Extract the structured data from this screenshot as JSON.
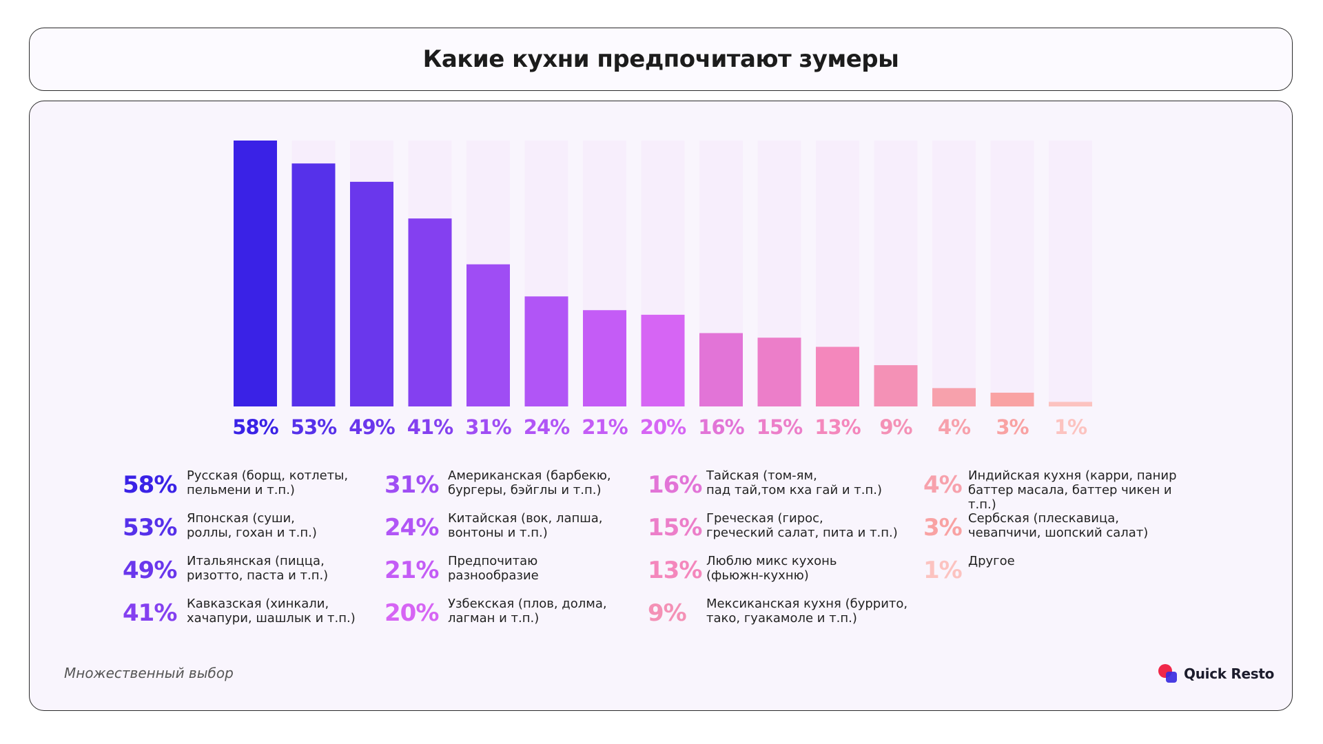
{
  "title": "Какие кухни предпочитают зумеры",
  "footnote": "Множественный выбор",
  "brand": {
    "name": "Quick Resto",
    "logo_colors": [
      "#f0284a",
      "#3a2be0"
    ]
  },
  "chart_data": {
    "type": "bar",
    "title": "Какие кухни предпочитают зумеры",
    "ylim": [
      0,
      58
    ],
    "grid": false,
    "legend_position": "bottom",
    "categories": [
      "Русская (борщ, котлеты, пельмени и т.п.)",
      "Японская (суши, роллы, гохан и т.п.)",
      "Итальянская (пицца, ризотто, паста и т.п.)",
      "Кавказская (хинкали, хачапури, шашлык и т.п.)",
      "Американская (барбекю, бургеры, бэйглы и т.п.)",
      "Китайская (вок, лапша, вонтоны и т.п.)",
      "Предпочитаю разнообразие",
      "Узбекская (плов, долма, лагман и т.п.)",
      "Тайская (том-ям, пад тай,том кха гай и т.п.)",
      "Греческая (гирос, греческий салат, пита и т.п.)",
      "Люблю микс кухонь (фьюжн-кухню)",
      "Мексиканская кухня (буррито, тако, гуакамоле и т.п.)",
      "Индийская кухня (карри, панир баттер масала, баттер чикен и т.п.)",
      "Сербская (плескавица, чевапчичи, шопский салат)",
      "Другое"
    ],
    "values": [
      58,
      53,
      49,
      41,
      31,
      24,
      21,
      20,
      16,
      15,
      13,
      9,
      4,
      3,
      1
    ],
    "value_labels": [
      "58%",
      "53%",
      "49%",
      "41%",
      "31%",
      "24%",
      "21%",
      "20%",
      "16%",
      "15%",
      "13%",
      "9%",
      "4%",
      "3%",
      "1%"
    ],
    "colors": [
      "#3a22e6",
      "#5631ea",
      "#6a37ec",
      "#8440f0",
      "#9f4df4",
      "#b155f6",
      "#c45cf6",
      "#d665f4",
      "#e274d7",
      "#ec7ec9",
      "#f487bc",
      "#f491b6",
      "#f7a1ac",
      "#f9a2a3",
      "#fcc3c0"
    ],
    "track_color": "#f7eefc"
  },
  "legend": [
    [
      {
        "pct": "58%",
        "text": "Русская (борщ, котлеты,\nпельмени и т.п.)"
      },
      {
        "pct": "53%",
        "text": "Японская (суши,\nроллы, гохан и т.п.)"
      },
      {
        "pct": "49%",
        "text": "Итальянская (пицца,\nризотто, паста и т.п.)"
      },
      {
        "pct": "41%",
        "text": "Кавказская (хинкали,\nхачапури, шашлык и т.п.)"
      }
    ],
    [
      {
        "pct": "31%",
        "text": "Американская (барбекю,\nбургеры, бэйглы и т.п.)"
      },
      {
        "pct": "24%",
        "text": "Китайская (вок, лапша,\nвонтоны и т.п.)"
      },
      {
        "pct": "21%",
        "text": "Предпочитаю\nразнообразие"
      },
      {
        "pct": "20%",
        "text": "Узбекская (плов, долма,\nлагман и т.п.)"
      }
    ],
    [
      {
        "pct": "16%",
        "text": "Тайская (том-ям,\nпад тай,том кха гай и т.п.)"
      },
      {
        "pct": "15%",
        "text": "Греческая (гирос,\nгреческий салат, пита и т.п.)"
      },
      {
        "pct": "13%",
        "text": "Люблю микс кухонь\n(фьюжн-кухню)"
      },
      {
        "pct": "9%",
        "text": "Мексиканская кухня (буррито,\nтако, гуакамоле и т.п.)"
      }
    ],
    [
      {
        "pct": "4%",
        "text": "Индийская кухня (карри, панир\nбаттер масала, баттер чикен и т.п.)"
      },
      {
        "pct": "3%",
        "text": "Сербская (плескавица,\nчевапчичи, шопский салат)"
      },
      {
        "pct": "1%",
        "text": "Другое"
      }
    ]
  ]
}
